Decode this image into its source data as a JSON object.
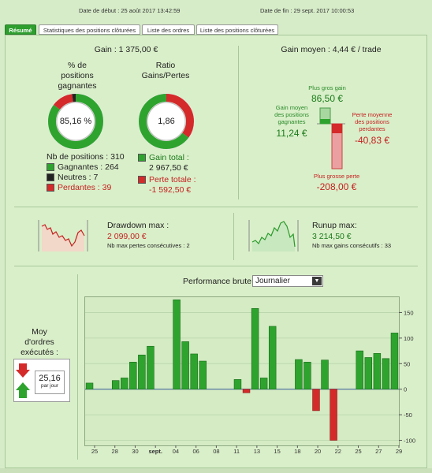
{
  "header": {
    "start_label": "Date de début :  25 août 2017 13:42:59",
    "end_label": "Date de fin :  29 sept. 2017 10:00:53"
  },
  "tabs": [
    {
      "label": "Résumé",
      "active": true
    },
    {
      "label": "Statistiques des positions clôturées",
      "active": false
    },
    {
      "label": "Liste des ordres",
      "active": false
    },
    {
      "label": "Liste des positions clôturées",
      "active": false
    }
  ],
  "gain": {
    "title": "Gain : 1 375,00 €",
    "pct_title": "% de\npositions\ngagnantes",
    "ratio_title": "Ratio\nGains/Pertes",
    "pct_value": "85,16 %",
    "pct_fraction": 0.8516,
    "neutral_fraction": 0.0226,
    "ratio_value": "1,86",
    "ratio_fraction": 0.6508,
    "nb_positions": "Nb de positions : 310",
    "gagnantes": "Gagnantes : 264",
    "neutres": "Neutres : 7",
    "perdantes": "Perdantes : 39",
    "gain_total_label": "Gain total :",
    "gain_total_value": "2 967,50 €",
    "perte_totale_label": "Perte totale :",
    "perte_totale_value": "-1 592,50 €"
  },
  "avg": {
    "title": "Gain moyen : 4,44 € / trade",
    "plus_gros_gain_label": "Plus gros gain",
    "plus_gros_gain_value": "86,50 €",
    "gain_moyen_label": "Gain moyen\ndes positions\ngagnantes",
    "gain_moyen_value": "11,24 €",
    "perte_moyenne_label": "Perte moyenne\ndes positions\nperdantes",
    "perte_moyenne_value": "-40,83 €",
    "plus_grosse_perte_label": "Plus grosse perte",
    "plus_grosse_perte_value": "-208,00 €"
  },
  "drawdown": {
    "title": "Drawdown max :",
    "value": "2 099,00 €",
    "sub": "Nb max pertes consécutives : 2"
  },
  "runup": {
    "title": "Runup max:",
    "value": "3 214,50 €",
    "sub": "Nb max gains consécutifs : 33"
  },
  "orders": {
    "title": "Moy\nd'ordres\nexécutés :",
    "value": "25,16",
    "unit": "par jour"
  },
  "performance": {
    "title": "Performance brute",
    "period": "Journalier"
  },
  "colors": {
    "green": "#2ea42e",
    "red": "#d42a2a",
    "dark": "#222222"
  },
  "chart_data": {
    "type": "bar",
    "x_tick_labels": [
      "25",
      "28",
      "30",
      "sept.",
      "04",
      "06",
      "08",
      "11",
      "13",
      "15",
      "18",
      "20",
      "22",
      "25",
      "27",
      "29"
    ],
    "y_ticks": [
      150,
      100,
      50,
      0,
      -50,
      -100
    ],
    "ylim": [
      -110,
      180
    ],
    "values": [
      12,
      0,
      0,
      17,
      22,
      53,
      67,
      84,
      0,
      0,
      175,
      93,
      69,
      55,
      0,
      0,
      0,
      19,
      -7,
      158,
      22,
      123,
      0,
      0,
      58,
      53,
      -42,
      57,
      -100,
      0,
      0,
      75,
      62,
      70,
      60,
      110
    ]
  }
}
